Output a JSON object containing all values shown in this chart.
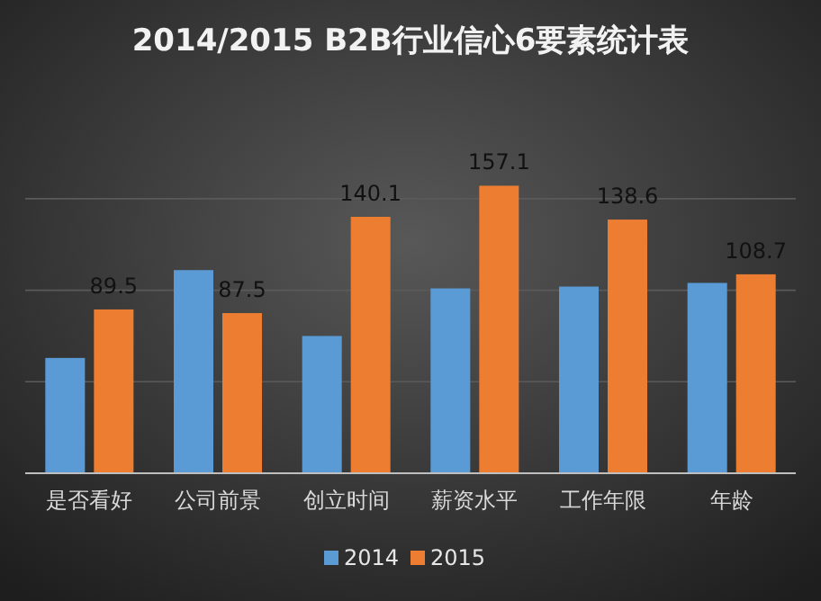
{
  "chart_data": {
    "type": "bar",
    "title": "2014/2015 B2B行业信心6要素统计表",
    "categories": [
      "是否看好",
      "公司前景",
      "创立时间",
      "薪资水平",
      "工作年限",
      "年龄"
    ],
    "series": [
      {
        "name": "2014",
        "color": "#5b9bd5",
        "values": [
          63,
          111,
          75,
          101,
          102,
          104
        ]
      },
      {
        "name": "2015",
        "color": "#ed7d31",
        "values": [
          89.5,
          87.5,
          140.1,
          157.1,
          138.6,
          108.7
        ],
        "value_labels": [
          "89.5",
          "87.5",
          "140.1",
          "157.1",
          "138.6",
          "108.7"
        ]
      }
    ],
    "yticks": [
      {
        "value": 0,
        "label": null
      },
      {
        "value": 50,
        "label": null
      },
      {
        "value": 100,
        "label": null
      },
      {
        "value": 150,
        "label": null
      }
    ],
    "grid": "y",
    "legend": "bottom"
  }
}
